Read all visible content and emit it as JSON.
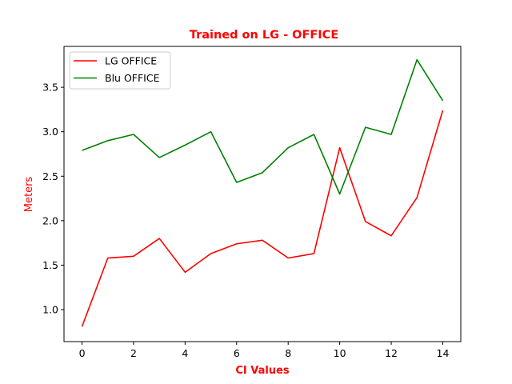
{
  "chart_data": {
    "type": "line",
    "title": "Trained on LG - OFFICE",
    "xlabel": "CI Values",
    "ylabel": "Meters",
    "label_color": "#ff0000",
    "x": [
      0,
      1,
      2,
      3,
      4,
      5,
      6,
      7,
      8,
      9,
      10,
      11,
      12,
      13,
      14
    ],
    "xlim": [
      -0.7,
      14.7
    ],
    "ylim": [
      0.64,
      3.96
    ],
    "xticks": [
      0,
      2,
      4,
      6,
      8,
      10,
      12,
      14
    ],
    "xtick_labels": [
      "0",
      "2",
      "4",
      "6",
      "8",
      "10",
      "12",
      "14"
    ],
    "yticks": [
      1.0,
      1.5,
      2.0,
      2.5,
      3.0,
      3.5
    ],
    "ytick_labels": [
      "1.0",
      "1.5",
      "2.0",
      "2.5",
      "3.0",
      "3.5"
    ],
    "grid": false,
    "legend_position": "upper-left",
    "series": [
      {
        "name": "LG OFFICE",
        "color": "#ff0000",
        "values": [
          0.81,
          1.58,
          1.6,
          1.8,
          1.42,
          1.63,
          1.74,
          1.78,
          1.58,
          1.63,
          2.82,
          1.99,
          1.83,
          2.26,
          3.24
        ]
      },
      {
        "name": "Blu OFFICE",
        "color": "#008000",
        "values": [
          2.79,
          2.9,
          2.97,
          2.71,
          2.85,
          3.0,
          2.43,
          2.54,
          2.82,
          2.97,
          2.3,
          3.05,
          2.97,
          3.81,
          3.35
        ]
      }
    ]
  }
}
